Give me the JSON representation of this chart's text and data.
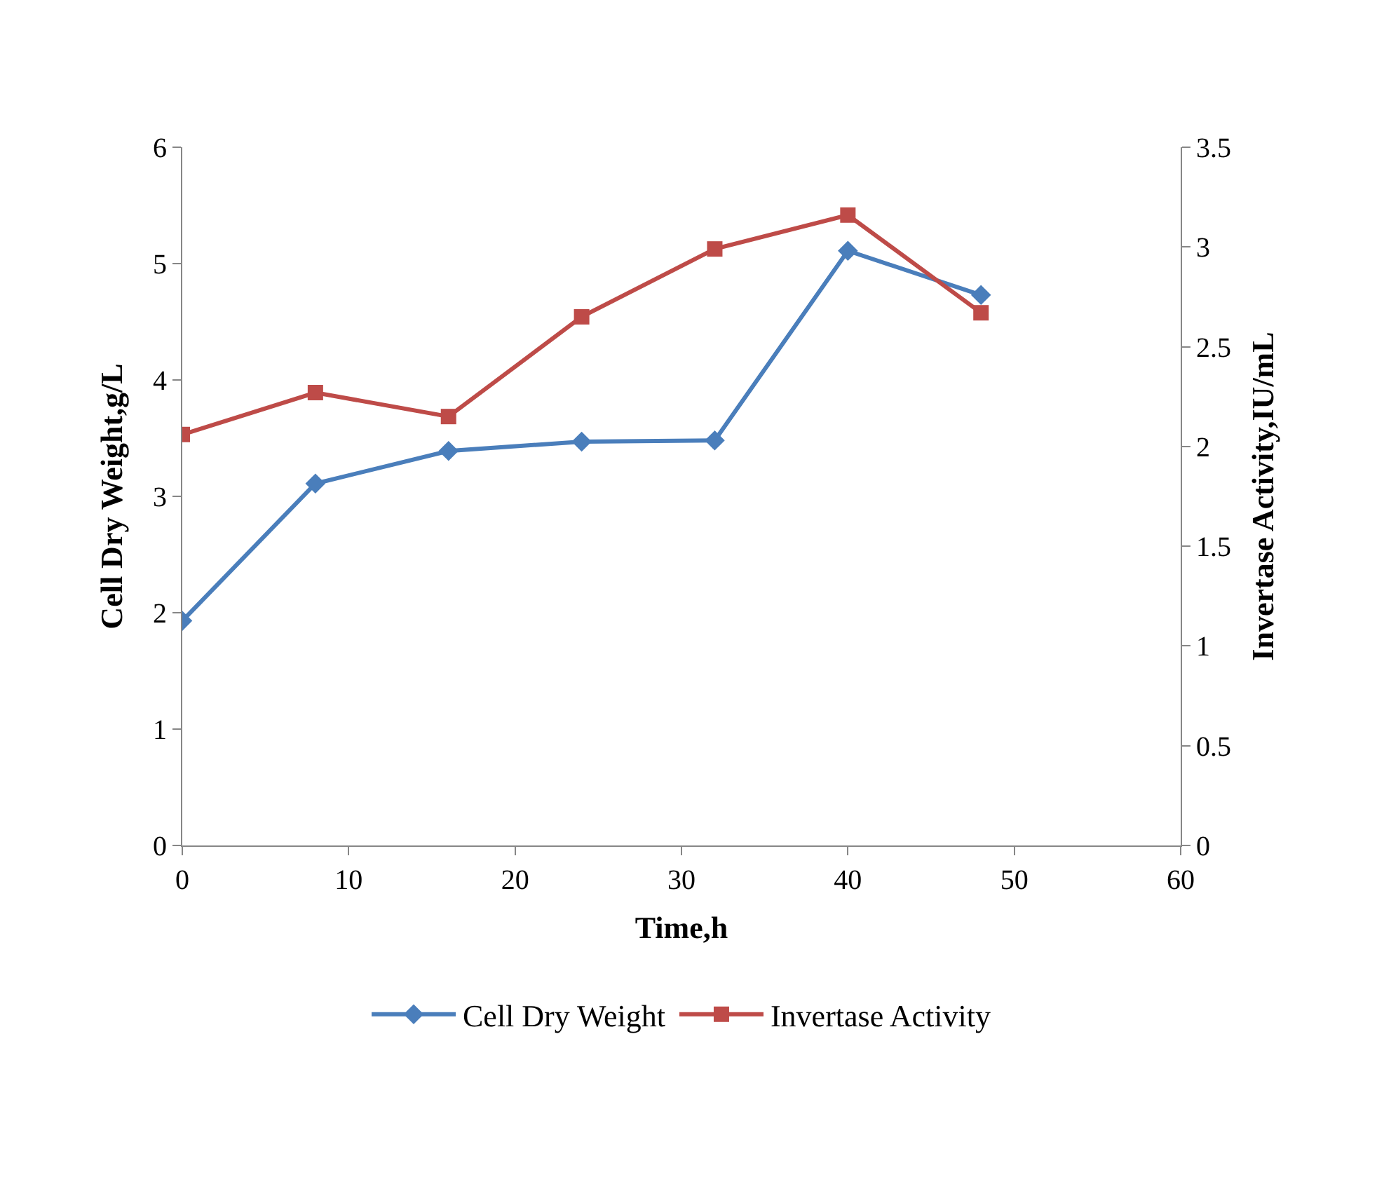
{
  "chart_data": {
    "type": "line",
    "xlabel": "Time,h",
    "ylabel": "Cell Dry Weight,g/L",
    "y2label": "Invertase Activity,IU/mL",
    "x": [
      0,
      8,
      16,
      24,
      32,
      40,
      48
    ],
    "series": [
      {
        "name": "Cell Dry Weight",
        "color": "#4a7ebb",
        "marker": "diamond",
        "values": [
          1.93,
          3.11,
          3.39,
          3.47,
          3.48,
          5.11,
          4.73
        ]
      },
      {
        "name": "Invertase Activity",
        "color": "#be4b48",
        "marker": "square",
        "axis": "y2",
        "values": [
          2.06,
          2.27,
          2.15,
          2.65,
          2.99,
          3.16,
          2.67
        ]
      }
    ],
    "xlim": [
      0,
      60
    ],
    "xticks": [
      0,
      10,
      20,
      30,
      40,
      50,
      60
    ],
    "ylim": [
      0,
      6
    ],
    "yticks": [
      0,
      1,
      2,
      3,
      4,
      5,
      6
    ],
    "y2lim": [
      0,
      3.5
    ],
    "y2ticks": [
      0,
      0.5,
      1,
      1.5,
      2,
      2.5,
      3,
      3.5
    ],
    "legend": "bottom"
  }
}
